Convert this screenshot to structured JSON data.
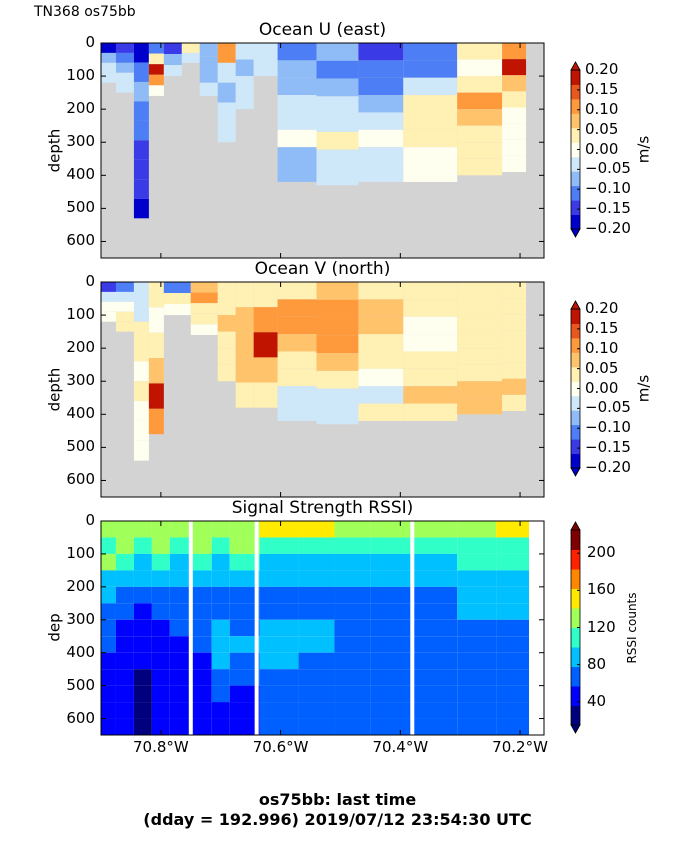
{
  "figure": {
    "suptitle": "TN368 os75bb",
    "footer_line1": "os75bb: last time",
    "footer_line2": "(dday = 192.996) 2019/07/12 23:54:30 UTC"
  },
  "colors": {
    "nodata_gray": "#d3d3d3",
    "frame": "#000000"
  },
  "chart_data": [
    {
      "type": "heatmap",
      "title": "Ocean U (east)",
      "ylabel": "depth",
      "xlabel": "",
      "x_ticks": [
        -70.8,
        -70.6,
        -70.4,
        -70.2
      ],
      "x_tick_labels": [],
      "xlim": [
        -70.9,
        -70.16
      ],
      "y_ticks": [
        0,
        100,
        200,
        300,
        400,
        500,
        600
      ],
      "ylim": [
        650,
        0
      ],
      "colorbar": {
        "label": "m/s",
        "ticks": [
          "0.20",
          "0.15",
          "0.10",
          "0.05",
          "0.00",
          "−0.05",
          "−0.10",
          "−0.15",
          "−0.20"
        ],
        "range": [
          -0.2,
          0.2
        ],
        "levels": [
          "#0000cc",
          "#3a3ae6",
          "#4d7ef5",
          "#8fbcf7",
          "#cfe8f9",
          "#fffff0",
          "#fff0b3",
          "#ffc36b",
          "#ff9a3c",
          "#e8581e",
          "#c01400"
        ]
      },
      "columns": [
        {
          "lon": -70.89,
          "profile": [
            -0.18,
            -0.08,
            -0.05,
            -0.05
          ],
          "max_depth": 120
        },
        {
          "lon": -70.86,
          "profile": [
            -0.16,
            -0.1,
            -0.06,
            -0.05,
            -0.05
          ],
          "max_depth": 150
        },
        {
          "lon": -70.83,
          "profile": [
            -0.18,
            -0.12,
            -0.08,
            -0.1,
            -0.12,
            -0.15,
            -0.16,
            -0.16,
            -0.2
          ],
          "max_depth": 530
        },
        {
          "lon": -70.81,
          "profile": [
            -0.1,
            0.05,
            0.18,
            0.12,
            0.0
          ],
          "max_depth": 160
        },
        {
          "lon": -70.78,
          "profile": [
            -0.14,
            -0.08,
            -0.05
          ],
          "max_depth": 100
        },
        {
          "lon": -70.75,
          "profile": [
            0.02,
            -0.05
          ],
          "max_depth": 60
        },
        {
          "lon": -70.72,
          "profile": [
            -0.06,
            -0.08,
            -0.06,
            -0.05
          ],
          "max_depth": 160
        },
        {
          "lon": -70.69,
          "profile": [
            0.1,
            -0.05,
            -0.06,
            -0.04,
            -0.03
          ],
          "max_depth": 300
        },
        {
          "lon": -70.66,
          "profile": [
            -0.05,
            -0.06,
            -0.05,
            -0.05
          ],
          "max_depth": 200
        },
        {
          "lon": -70.63,
          "profile": [
            -0.05,
            -0.04,
            -0.03
          ],
          "max_depth": 100
        },
        {
          "lon": -70.58,
          "profile": [
            -0.1,
            -0.08,
            -0.06,
            -0.04,
            -0.03,
            0.0,
            -0.06,
            -0.06
          ],
          "max_depth": 420
        },
        {
          "lon": -70.5,
          "profile": [
            -0.08,
            -0.1,
            -0.08,
            -0.05,
            -0.03,
            0.03,
            -0.05,
            -0.05
          ],
          "max_depth": 430
        },
        {
          "lon": -70.44,
          "profile": [
            -0.14,
            -0.12,
            -0.1,
            -0.07,
            -0.03,
            0.0,
            -0.04,
            -0.04
          ],
          "max_depth": 420
        },
        {
          "lon": -70.35,
          "profile": [
            -0.12,
            -0.1,
            -0.05,
            0.05,
            0.04,
            0.02,
            0.01,
            0.0
          ],
          "max_depth": 420
        },
        {
          "lon": -70.26,
          "profile": [
            0.02,
            0.0,
            0.05,
            0.1,
            0.08,
            0.05,
            0.03,
            0.02
          ],
          "max_depth": 400
        },
        {
          "lon": -70.2,
          "profile": [
            0.12,
            0.18,
            0.08,
            0.02,
            0.0,
            0.0,
            0.0,
            0.01
          ],
          "max_depth": 390
        }
      ]
    },
    {
      "type": "heatmap",
      "title": "Ocean V (north)",
      "ylabel": "depth",
      "xlabel": "",
      "x_ticks": [
        -70.8,
        -70.6,
        -70.4,
        -70.2
      ],
      "x_tick_labels": [],
      "xlim": [
        -70.9,
        -70.16
      ],
      "y_ticks": [
        0,
        100,
        200,
        300,
        400,
        500,
        600
      ],
      "ylim": [
        650,
        0
      ],
      "colorbar": {
        "label": "m/s",
        "ticks": [
          "0.20",
          "0.15",
          "0.10",
          "0.05",
          "0.00",
          "−0.05",
          "−0.10",
          "−0.15",
          "−0.20"
        ],
        "range": [
          -0.2,
          0.2
        ],
        "levels": [
          "#0000cc",
          "#3a3ae6",
          "#4d7ef5",
          "#8fbcf7",
          "#cfe8f9",
          "#fffff0",
          "#fff0b3",
          "#ffc36b",
          "#ff9a3c",
          "#e8581e",
          "#c01400"
        ]
      },
      "columns": [
        {
          "lon": -70.89,
          "profile": [
            -0.15,
            -0.05,
            0.0,
            0.0
          ],
          "max_depth": 120
        },
        {
          "lon": -70.86,
          "profile": [
            -0.1,
            -0.05,
            0.0,
            0.02,
            0.04
          ],
          "max_depth": 150
        },
        {
          "lon": -70.83,
          "profile": [
            -0.05,
            -0.04,
            0.02,
            0.04,
            0.0,
            0.05,
            0.0,
            0.0,
            0.0
          ],
          "max_depth": 540
        },
        {
          "lon": -70.81,
          "profile": [
            0.05,
            0.0,
            0.05,
            0.08,
            0.18,
            0.1
          ],
          "max_depth": 460
        },
        {
          "lon": -70.78,
          "profile": [
            -0.1,
            0.02,
            0.0
          ],
          "max_depth": 100
        },
        {
          "lon": -70.72,
          "profile": [
            0.08,
            0.1,
            0.05,
            0.04,
            0.0
          ],
          "max_depth": 160
        },
        {
          "lon": -70.69,
          "profile": [
            0.04,
            0.05,
            0.06,
            0.05,
            0.04,
            0.03
          ],
          "max_depth": 300
        },
        {
          "lon": -70.66,
          "profile": [
            0.05,
            0.06,
            0.08,
            0.06,
            0.04
          ],
          "max_depth": 380
        },
        {
          "lon": -70.63,
          "profile": [
            0.05,
            0.1,
            0.18,
            0.06,
            0.04
          ],
          "max_depth": 380
        },
        {
          "lon": -70.58,
          "profile": [
            0.05,
            0.1,
            0.12,
            0.08,
            0.04,
            0.02,
            -0.04,
            -0.02
          ],
          "max_depth": 420
        },
        {
          "lon": -70.5,
          "profile": [
            0.06,
            0.1,
            0.12,
            0.12,
            0.08,
            0.04,
            -0.03,
            -0.02
          ],
          "max_depth": 430
        },
        {
          "lon": -70.44,
          "profile": [
            0.04,
            0.08,
            0.06,
            0.05,
            0.03,
            0.0,
            -0.04,
            0.02
          ],
          "max_depth": 420
        },
        {
          "lon": -70.35,
          "profile": [
            0.04,
            0.02,
            0.0,
            0.0,
            0.02,
            0.04,
            0.08,
            0.04
          ],
          "max_depth": 420
        },
        {
          "lon": -70.26,
          "profile": [
            0.05,
            0.03,
            0.02,
            0.04,
            0.04,
            0.05,
            0.06,
            0.06
          ],
          "max_depth": 400
        },
        {
          "lon": -70.2,
          "profile": [
            0.04,
            0.03,
            0.05,
            0.04,
            0.03,
            0.04,
            0.06,
            0.05
          ],
          "max_depth": 390
        }
      ]
    },
    {
      "type": "heatmap",
      "title": "Signal Strength RSSI)",
      "ylabel": "dep",
      "xlabel": "",
      "x_ticks": [
        -70.8,
        -70.6,
        -70.4,
        -70.2
      ],
      "x_tick_labels": [
        "70.8°W",
        "70.6°W",
        "70.4°W",
        "70.2°W"
      ],
      "xlim": [
        -70.9,
        -70.16
      ],
      "y_ticks": [
        0,
        100,
        200,
        300,
        400,
        500,
        600
      ],
      "ylim": [
        650,
        0
      ],
      "colorbar": {
        "label": "RSSI counts",
        "ticks": [
          "200",
          "160",
          "120",
          "80",
          "40"
        ],
        "range": [
          15,
          225
        ],
        "levels": [
          "#00007f",
          "#0000ff",
          "#0060ff",
          "#00c0ff",
          "#30ffc8",
          "#a0ff58",
          "#ffea00",
          "#ff8800",
          "#ff2000",
          "#7f0000"
        ]
      },
      "gaps": [
        -70.75,
        -70.64,
        -70.38
      ],
      "columns": [
        {
          "lon": -70.89,
          "profile": [
            120,
            110,
            130,
            90,
            80,
            70,
            60,
            60,
            55,
            55,
            50,
            50,
            55
          ]
        },
        {
          "lon": -70.86,
          "profile": [
            130,
            120,
            110,
            90,
            75,
            65,
            55,
            50,
            50,
            48,
            45,
            45,
            45
          ]
        },
        {
          "lon": -70.83,
          "profile": [
            125,
            115,
            95,
            80,
            65,
            55,
            45,
            40,
            38,
            35,
            32,
            30,
            30
          ]
        },
        {
          "lon": -70.8,
          "profile": [
            130,
            120,
            100,
            80,
            70,
            60,
            55,
            55,
            50,
            50,
            48,
            45,
            45
          ]
        },
        {
          "lon": -70.77,
          "profile": [
            125,
            115,
            95,
            80,
            70,
            60,
            60,
            55,
            55,
            50,
            50,
            48,
            48
          ]
        },
        {
          "lon": -70.73,
          "profile": [
            130,
            120,
            100,
            85,
            70,
            65,
            60,
            60,
            55,
            55,
            50,
            50,
            50
          ]
        },
        {
          "lon": -70.7,
          "profile": [
            125,
            115,
            95,
            80,
            70,
            65,
            85,
            95,
            90,
            70,
            60,
            55,
            55
          ]
        },
        {
          "lon": -70.67,
          "profile": [
            130,
            120,
            100,
            85,
            70,
            65,
            70,
            80,
            75,
            65,
            55,
            50,
            50
          ]
        },
        {
          "lon": -70.6,
          "profile": [
            150,
            110,
            95,
            80,
            70,
            75,
            95,
            90,
            80,
            70,
            65,
            60,
            60
          ]
        },
        {
          "lon": -70.54,
          "profile": [
            145,
            110,
            95,
            85,
            75,
            70,
            80,
            85,
            75,
            70,
            65,
            65,
            65
          ]
        },
        {
          "lon": -70.48,
          "profile": [
            140,
            105,
            95,
            85,
            75,
            70,
            70,
            70,
            70,
            65,
            65,
            65,
            65
          ]
        },
        {
          "lon": -70.42,
          "profile": [
            140,
            105,
            90,
            80,
            75,
            70,
            70,
            70,
            70,
            65,
            65,
            65,
            65
          ]
        },
        {
          "lon": -70.34,
          "profile": [
            140,
            110,
            95,
            85,
            75,
            70,
            70,
            70,
            70,
            65,
            65,
            65,
            65
          ]
        },
        {
          "lon": -70.27,
          "profile": [
            140,
            110,
            100,
            90,
            80,
            85,
            75,
            72,
            70,
            68,
            66,
            65,
            65
          ]
        },
        {
          "lon": -70.21,
          "profile": [
            145,
            115,
            100,
            95,
            90,
            80,
            75,
            72,
            70,
            68,
            66,
            65,
            65
          ]
        }
      ]
    }
  ]
}
